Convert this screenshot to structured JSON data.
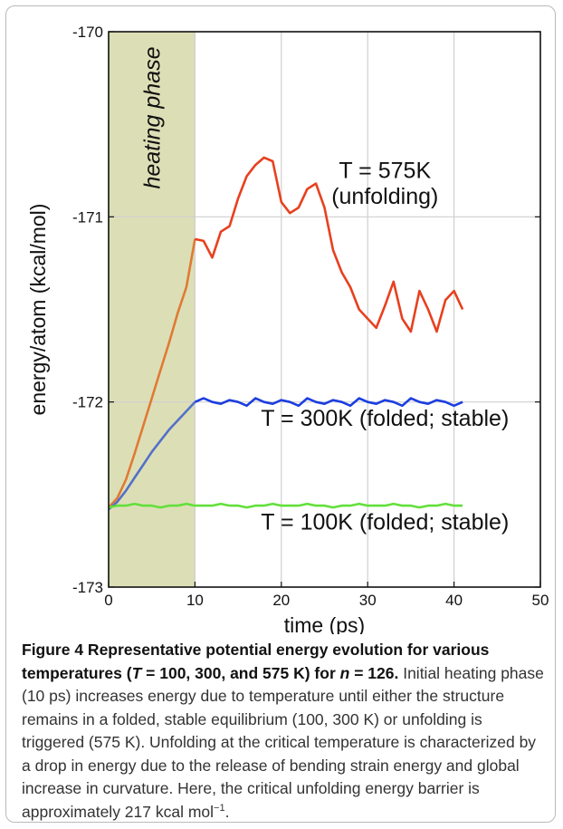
{
  "chart_data": {
    "type": "line",
    "xlabel": "time (ps)",
    "ylabel": "energy/atom (kcal/mol)",
    "xlim": [
      0,
      50
    ],
    "ylim": [
      -173,
      -170
    ],
    "xticks": [
      "0",
      "10",
      "20",
      "30",
      "40",
      "50"
    ],
    "yticks": [
      "-170",
      "-171",
      "-172",
      "-173"
    ],
    "grid": true,
    "shaded_region": {
      "x": [
        0,
        10
      ],
      "label": "heating phase",
      "color": "#dcdfb6"
    },
    "annotations": [
      {
        "text": "T = 575K",
        "x": 32,
        "y": -170.79
      },
      {
        "text": "(unfolding)",
        "x": 32,
        "y": -170.93
      },
      {
        "text": "T = 300K (folded; stable)",
        "x": 32,
        "y": -172.13
      },
      {
        "text": "T = 100K (folded; stable)",
        "x": 32,
        "y": -172.69
      }
    ],
    "series": [
      {
        "color": "#e8401f",
        "heat_color": "#e07a35",
        "x": [
          0,
          1,
          2,
          3,
          4,
          5,
          6,
          7,
          8,
          9,
          10,
          11,
          12,
          13,
          14,
          15,
          16,
          17,
          18,
          19,
          20,
          21,
          22,
          23,
          24,
          25,
          26,
          27,
          28,
          29,
          30,
          31,
          32,
          33,
          34,
          35,
          36,
          37,
          38,
          39,
          40,
          41
        ],
        "y": [
          -172.57,
          -172.52,
          -172.42,
          -172.28,
          -172.13,
          -171.98,
          -171.83,
          -171.68,
          -171.52,
          -171.38,
          -171.12,
          -171.13,
          -171.22,
          -171.08,
          -171.05,
          -170.9,
          -170.78,
          -170.72,
          -170.68,
          -170.7,
          -170.92,
          -170.98,
          -170.95,
          -170.85,
          -170.82,
          -170.95,
          -171.18,
          -171.3,
          -171.38,
          -171.5,
          -171.55,
          -171.6,
          -171.48,
          -171.35,
          -171.55,
          -171.62,
          -171.4,
          -171.5,
          -171.62,
          -171.45,
          -171.4,
          -171.5
        ]
      },
      {
        "color": "#1c3ee0",
        "heat_color": "#5470c8",
        "x": [
          0,
          1,
          2,
          3,
          4,
          5,
          6,
          7,
          8,
          9,
          10,
          11,
          12,
          13,
          14,
          15,
          16,
          17,
          18,
          19,
          20,
          21,
          22,
          23,
          24,
          25,
          26,
          27,
          28,
          29,
          30,
          31,
          32,
          33,
          34,
          35,
          36,
          37,
          38,
          39,
          40,
          41
        ],
        "y": [
          -172.58,
          -172.54,
          -172.48,
          -172.41,
          -172.34,
          -172.27,
          -172.21,
          -172.15,
          -172.1,
          -172.05,
          -172.0,
          -171.98,
          -172.0,
          -172.01,
          -171.99,
          -172.0,
          -172.02,
          -171.98,
          -172.0,
          -172.01,
          -171.99,
          -172.0,
          -172.02,
          -171.98,
          -172.0,
          -172.01,
          -171.99,
          -172.0,
          -172.02,
          -171.98,
          -172.0,
          -172.01,
          -171.99,
          -172.0,
          -172.02,
          -171.98,
          -172.0,
          -172.01,
          -171.99,
          -172.0,
          -172.02,
          -172.0
        ]
      },
      {
        "color": "#62e03a",
        "heat_color": "#62e03a",
        "x": [
          0,
          1,
          2,
          3,
          4,
          5,
          6,
          7,
          8,
          9,
          10,
          11,
          12,
          13,
          14,
          15,
          16,
          17,
          18,
          19,
          20,
          21,
          22,
          23,
          24,
          25,
          26,
          27,
          28,
          29,
          30,
          31,
          32,
          33,
          34,
          35,
          36,
          37,
          38,
          39,
          40,
          41
        ],
        "y": [
          -172.57,
          -172.56,
          -172.56,
          -172.55,
          -172.56,
          -172.56,
          -172.57,
          -172.56,
          -172.56,
          -172.55,
          -172.56,
          -172.56,
          -172.56,
          -172.55,
          -172.56,
          -172.56,
          -172.57,
          -172.56,
          -172.56,
          -172.55,
          -172.56,
          -172.56,
          -172.56,
          -172.55,
          -172.56,
          -172.56,
          -172.57,
          -172.56,
          -172.56,
          -172.55,
          -172.56,
          -172.56,
          -172.56,
          -172.55,
          -172.56,
          -172.56,
          -172.57,
          -172.56,
          -172.56,
          -172.55,
          -172.56,
          -172.56
        ]
      }
    ]
  },
  "caption": {
    "title_a": "Figure 4 Representative potential energy evolution for various temperatures (",
    "title_T": "T",
    "title_b": " = 100, 300, and 575 K) for ",
    "title_n": "n",
    "title_c": " = 126.",
    "body_main": " Initial heating phase (10 ps) increases energy due to temperature until either the structure remains in a folded, stable equilibrium (100, 300 K) or unfolding is triggered (575 K). Unfolding at the critical temperature is characterized by a drop in energy due to the release of bending strain energy and global increase in curvature. Here, the critical unfolding energy barrier is approximately 217 kcal mol",
    "body_sup": "−1",
    "body_end": "."
  }
}
